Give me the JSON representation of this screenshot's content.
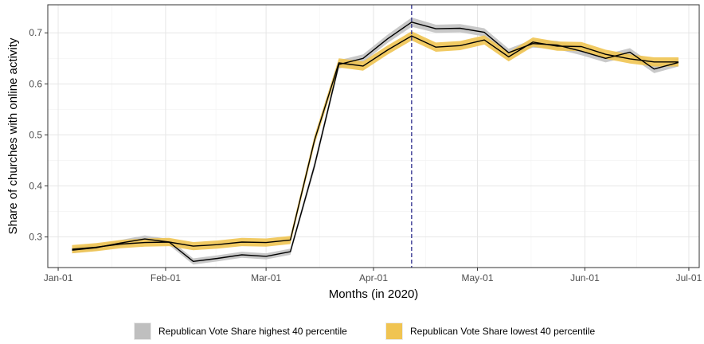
{
  "chart_data": {
    "type": "line",
    "title": "",
    "xlabel": "Months (in 2020)",
    "ylabel": "Share of churches with online activity",
    "x_ticks": [
      "Jan-01",
      "Feb-01",
      "Mar-01",
      "Apr-01",
      "May-01",
      "Jun-01",
      "Jul-01"
    ],
    "y_ticks": [
      "0.3",
      "0.4",
      "0.5",
      "0.6",
      "0.7"
    ],
    "xlim": [
      "2019-12-29",
      "2020-07-04"
    ],
    "ylim": [
      0.24,
      0.755
    ],
    "grid": true,
    "reference_line": {
      "x": "2020-04-12",
      "style": "dashed",
      "color": "#2a2a8c"
    },
    "legend_position": "bottom",
    "series": [
      {
        "name": "Republican Vote Share highest 40 percentile",
        "line_color": "#000000",
        "band_color": "#bfbfbf",
        "points": [
          [
            "2020-01-05",
            0.274
          ],
          [
            "2020-01-12",
            0.279
          ],
          [
            "2020-01-19",
            0.288
          ],
          [
            "2020-01-26",
            0.296
          ],
          [
            "2020-02-02",
            0.29
          ],
          [
            "2020-02-09",
            0.252
          ],
          [
            "2020-02-16",
            0.258
          ],
          [
            "2020-02-23",
            0.265
          ],
          [
            "2020-03-01",
            0.262
          ],
          [
            "2020-03-08",
            0.271
          ],
          [
            "2020-03-15",
            0.44
          ],
          [
            "2020-03-22",
            0.638
          ],
          [
            "2020-03-29",
            0.65
          ],
          [
            "2020-04-05",
            0.688
          ],
          [
            "2020-04-12",
            0.721
          ],
          [
            "2020-04-19",
            0.708
          ],
          [
            "2020-04-26",
            0.709
          ],
          [
            "2020-05-03",
            0.701
          ],
          [
            "2020-05-10",
            0.661
          ],
          [
            "2020-05-17",
            0.679
          ],
          [
            "2020-05-24",
            0.676
          ],
          [
            "2020-05-31",
            0.664
          ],
          [
            "2020-06-07",
            0.65
          ],
          [
            "2020-06-14",
            0.662
          ],
          [
            "2020-06-21",
            0.629
          ],
          [
            "2020-06-28",
            0.642
          ]
        ],
        "band": [
          [
            0.268,
            0.28
          ],
          [
            0.273,
            0.285
          ],
          [
            0.282,
            0.294
          ],
          [
            0.29,
            0.303
          ],
          [
            0.284,
            0.296
          ],
          [
            0.246,
            0.258
          ],
          [
            0.252,
            0.264
          ],
          [
            0.259,
            0.271
          ],
          [
            0.256,
            0.268
          ],
          [
            0.265,
            0.277
          ],
          [
            0.432,
            0.448
          ],
          [
            0.63,
            0.646
          ],
          [
            0.642,
            0.658
          ],
          [
            0.68,
            0.696
          ],
          [
            0.712,
            0.73
          ],
          [
            0.7,
            0.716
          ],
          [
            0.701,
            0.717
          ],
          [
            0.693,
            0.709
          ],
          [
            0.653,
            0.669
          ],
          [
            0.671,
            0.687
          ],
          [
            0.668,
            0.684
          ],
          [
            0.656,
            0.672
          ],
          [
            0.642,
            0.658
          ],
          [
            0.654,
            0.67
          ],
          [
            0.621,
            0.637
          ],
          [
            0.634,
            0.65
          ]
        ]
      },
      {
        "name": "Republican Vote Share lowest 40 percentile",
        "line_color": "#000000",
        "band_color": "#f0c452",
        "points": [
          [
            "2020-01-05",
            0.276
          ],
          [
            "2020-01-12",
            0.28
          ],
          [
            "2020-01-19",
            0.286
          ],
          [
            "2020-01-26",
            0.289
          ],
          [
            "2020-02-02",
            0.29
          ],
          [
            "2020-02-09",
            0.282
          ],
          [
            "2020-02-16",
            0.285
          ],
          [
            "2020-02-23",
            0.29
          ],
          [
            "2020-03-01",
            0.289
          ],
          [
            "2020-03-08",
            0.294
          ],
          [
            "2020-03-15",
            0.49
          ],
          [
            "2020-03-22",
            0.641
          ],
          [
            "2020-03-29",
            0.635
          ],
          [
            "2020-04-05",
            0.666
          ],
          [
            "2020-04-12",
            0.694
          ],
          [
            "2020-04-19",
            0.672
          ],
          [
            "2020-04-26",
            0.675
          ],
          [
            "2020-05-03",
            0.686
          ],
          [
            "2020-05-10",
            0.653
          ],
          [
            "2020-05-17",
            0.682
          ],
          [
            "2020-05-24",
            0.674
          ],
          [
            "2020-05-31",
            0.673
          ],
          [
            "2020-06-07",
            0.658
          ],
          [
            "2020-06-14",
            0.649
          ],
          [
            "2020-06-21",
            0.643
          ],
          [
            "2020-06-28",
            0.643
          ]
        ],
        "band": [
          [
            0.268,
            0.284
          ],
          [
            0.272,
            0.288
          ],
          [
            0.278,
            0.294
          ],
          [
            0.281,
            0.297
          ],
          [
            0.282,
            0.298
          ],
          [
            0.274,
            0.29
          ],
          [
            0.277,
            0.293
          ],
          [
            0.282,
            0.298
          ],
          [
            0.281,
            0.297
          ],
          [
            0.286,
            0.302
          ],
          [
            0.481,
            0.499
          ],
          [
            0.632,
            0.65
          ],
          [
            0.626,
            0.644
          ],
          [
            0.657,
            0.675
          ],
          [
            0.685,
            0.703
          ],
          [
            0.663,
            0.681
          ],
          [
            0.666,
            0.684
          ],
          [
            0.677,
            0.695
          ],
          [
            0.644,
            0.662
          ],
          [
            0.673,
            0.691
          ],
          [
            0.665,
            0.683
          ],
          [
            0.664,
            0.682
          ],
          [
            0.649,
            0.667
          ],
          [
            0.64,
            0.658
          ],
          [
            0.634,
            0.652
          ],
          [
            0.634,
            0.652
          ]
        ]
      }
    ]
  }
}
